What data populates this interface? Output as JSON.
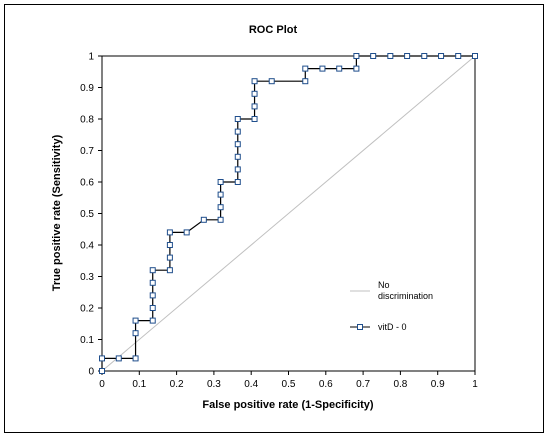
{
  "chart_data": {
    "type": "line",
    "title": "ROC Plot",
    "xlabel": "False positive rate (1-Specificity)",
    "ylabel": "True positive rate (Sensitivity)",
    "xlim": [
      0,
      1
    ],
    "ylim": [
      0,
      1
    ],
    "x_ticks": [
      "0",
      "0.1",
      "0.2",
      "0.3",
      "0.4",
      "0.5",
      "0.6",
      "0.7",
      "0.8",
      "0.9",
      "1"
    ],
    "y_ticks": [
      "0",
      "0.1",
      "0.2",
      "0.3",
      "0.4",
      "0.5",
      "0.6",
      "0.7",
      "0.8",
      "0.9",
      "1"
    ],
    "grid": false,
    "legend_position": "right-middle",
    "series": [
      {
        "name": "No discrimination",
        "style": "line",
        "color": "#c0c0c0",
        "x": [
          0,
          1
        ],
        "y": [
          0,
          1
        ]
      },
      {
        "name": "vitD - 0",
        "style": "step-markers",
        "color": "#1f4e8c",
        "marker": "open-square",
        "x": [
          0,
          0,
          0.045,
          0.09,
          0.09,
          0.09,
          0.136,
          0.136,
          0.136,
          0.136,
          0.136,
          0.182,
          0.182,
          0.182,
          0.182,
          0.227,
          0.273,
          0.318,
          0.318,
          0.318,
          0.318,
          0.364,
          0.364,
          0.364,
          0.364,
          0.364,
          0.364,
          0.409,
          0.409,
          0.409,
          0.409,
          0.455,
          0.545,
          0.545,
          0.591,
          0.636,
          0.682,
          0.682,
          0.727,
          0.773,
          0.818,
          0.864,
          0.909,
          0.955,
          1
        ],
        "y": [
          0,
          0.04,
          0.04,
          0.04,
          0.12,
          0.16,
          0.16,
          0.2,
          0.24,
          0.28,
          0.32,
          0.32,
          0.36,
          0.4,
          0.44,
          0.44,
          0.48,
          0.48,
          0.52,
          0.56,
          0.6,
          0.6,
          0.64,
          0.68,
          0.72,
          0.76,
          0.8,
          0.8,
          0.84,
          0.88,
          0.92,
          0.92,
          0.92,
          0.96,
          0.96,
          0.96,
          0.96,
          1,
          1,
          1,
          1,
          1,
          1,
          1,
          1
        ]
      }
    ]
  }
}
